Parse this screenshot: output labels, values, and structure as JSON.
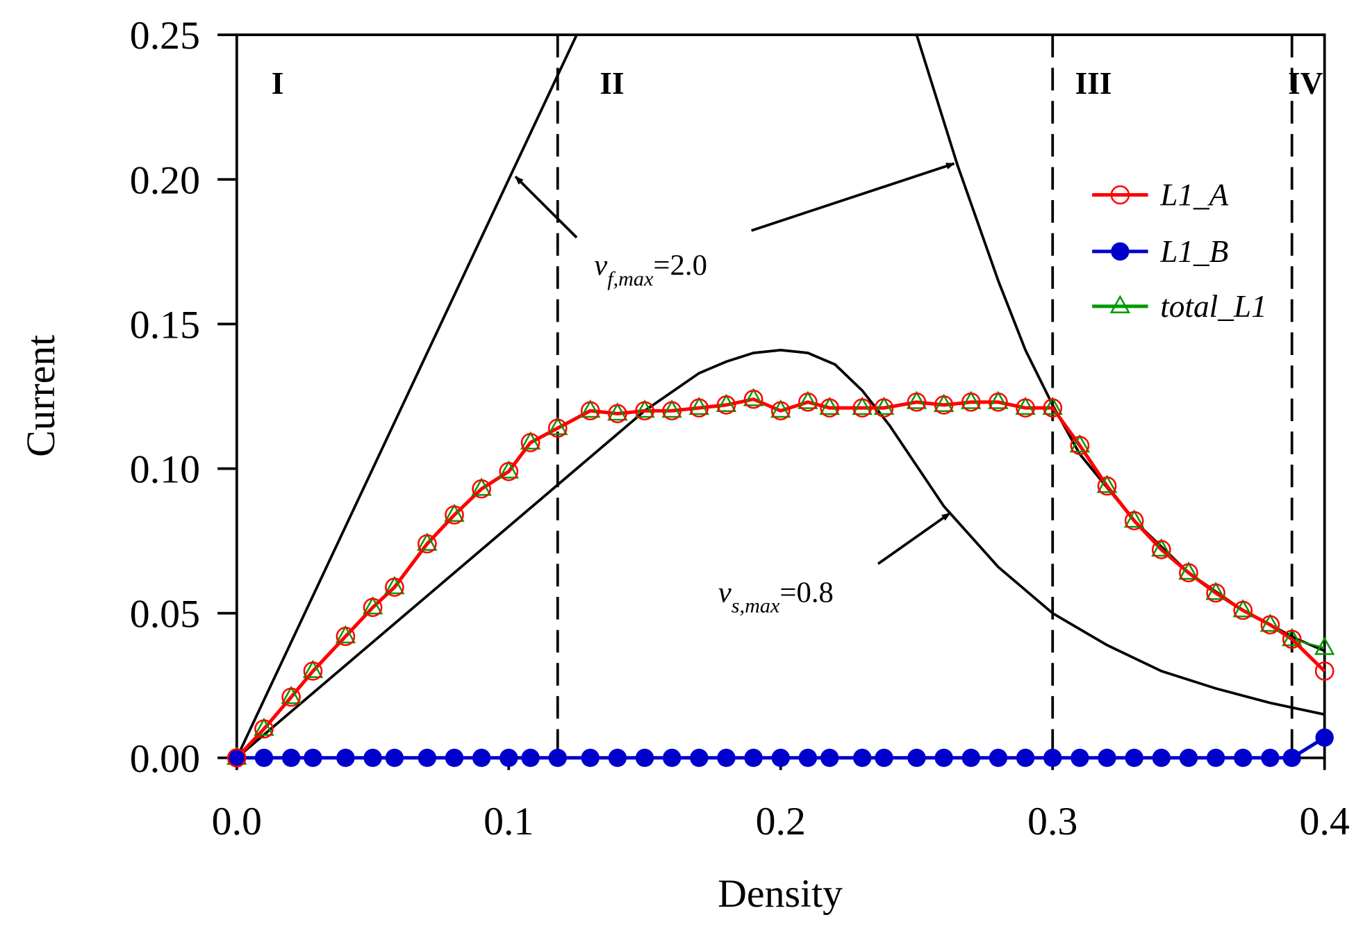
{
  "chart_data": {
    "type": "line",
    "xlabel": "Density",
    "ylabel": "Current",
    "xlim": [
      0,
      0.4
    ],
    "ylim": [
      0,
      0.25
    ],
    "xticks": [
      "0.0",
      "0.1",
      "0.2",
      "0.3",
      "0.4"
    ],
    "yticks": [
      "0.00",
      "0.05",
      "0.10",
      "0.15",
      "0.20",
      "0.25"
    ],
    "legend_position": "right",
    "regions": [
      {
        "label": "I",
        "x": 0.015
      },
      {
        "label": "II",
        "x": 0.138
      },
      {
        "label": "III",
        "x": 0.315
      },
      {
        "label": "IV",
        "x": 0.393
      }
    ],
    "region_boundaries": [
      0.118,
      0.3,
      0.388
    ],
    "x": [
      0,
      0.01,
      0.02,
      0.028,
      0.04,
      0.05,
      0.058,
      0.07,
      0.08,
      0.09,
      0.1,
      0.108,
      0.118,
      0.13,
      0.14,
      0.15,
      0.16,
      0.17,
      0.18,
      0.19,
      0.2,
      0.21,
      0.218,
      0.23,
      0.238,
      0.25,
      0.26,
      0.27,
      0.28,
      0.29,
      0.3,
      0.31,
      0.32,
      0.33,
      0.34,
      0.35,
      0.36,
      0.37,
      0.38,
      0.388,
      0.4
    ],
    "series": [
      {
        "name": "L1_A",
        "color": "#ff0000",
        "marker": "open-circle",
        "values": [
          0,
          0.01,
          0.021,
          0.03,
          0.042,
          0.052,
          0.059,
          0.074,
          0.084,
          0.093,
          0.099,
          0.109,
          0.114,
          0.12,
          0.119,
          0.12,
          0.12,
          0.121,
          0.122,
          0.124,
          0.12,
          0.123,
          0.121,
          0.121,
          0.121,
          0.123,
          0.122,
          0.123,
          0.123,
          0.121,
          0.121,
          0.108,
          0.094,
          0.082,
          0.072,
          0.064,
          0.057,
          0.051,
          0.046,
          0.041,
          0.03
        ]
      },
      {
        "name": "L1_B",
        "color": "#0000cc",
        "marker": "filled-circle",
        "values": [
          0,
          0,
          0,
          0,
          0,
          0,
          0,
          0,
          0,
          0,
          0,
          0,
          0,
          0,
          0,
          0,
          0,
          0,
          0,
          0,
          0,
          0,
          0,
          0,
          0,
          0,
          0,
          0,
          0,
          0,
          0,
          0,
          0,
          0,
          0,
          0,
          0,
          0,
          0,
          0,
          0.007
        ]
      },
      {
        "name": "total_L1",
        "color": "#009900",
        "marker": "open-triangle",
        "values": [
          0,
          0.01,
          0.021,
          0.03,
          0.042,
          0.052,
          0.059,
          0.074,
          0.084,
          0.093,
          0.099,
          0.109,
          0.114,
          0.12,
          0.119,
          0.12,
          0.12,
          0.121,
          0.122,
          0.124,
          0.12,
          0.123,
          0.121,
          0.121,
          0.121,
          0.123,
          0.122,
          0.123,
          0.123,
          0.121,
          0.121,
          0.108,
          0.094,
          0.082,
          0.072,
          0.064,
          0.057,
          0.051,
          0.046,
          0.041,
          0.038
        ]
      }
    ],
    "reference_curves": [
      {
        "label": "v_f,max=2.0",
        "color": "#000000",
        "segments": [
          [
            [
              0,
              0
            ],
            [
              0.125,
              0.25
            ]
          ],
          [
            [
              0.25,
              0.25
            ],
            [
              0.265,
              0.205
            ],
            [
              0.28,
              0.165
            ],
            [
              0.29,
              0.141
            ],
            [
              0.3,
              0.122
            ],
            [
              0.31,
              0.105
            ],
            [
              0.33,
              0.082
            ],
            [
              0.35,
              0.064
            ],
            [
              0.37,
              0.051
            ],
            [
              0.39,
              0.041
            ],
            [
              0.4,
              0.037
            ]
          ]
        ]
      },
      {
        "label": "v_s,max=0.8",
        "color": "#000000",
        "segments": [
          [
            [
              0,
              0
            ],
            [
              0.15,
              0.12
            ],
            [
              0.17,
              0.133
            ],
            [
              0.18,
              0.137
            ],
            [
              0.19,
              0.14
            ],
            [
              0.2,
              0.141
            ],
            [
              0.21,
              0.14
            ],
            [
              0.22,
              0.136
            ],
            [
              0.23,
              0.127
            ],
            [
              0.24,
              0.115
            ],
            [
              0.26,
              0.087
            ],
            [
              0.28,
              0.066
            ],
            [
              0.3,
              0.05
            ],
            [
              0.32,
              0.039
            ],
            [
              0.34,
              0.03
            ],
            [
              0.36,
              0.024
            ],
            [
              0.38,
              0.019
            ],
            [
              0.4,
              0.015
            ]
          ]
        ]
      }
    ],
    "annotations": {
      "vf": {
        "v": "v",
        "sub": "f,max",
        "rest": "=2.0"
      },
      "vs": {
        "v": "v",
        "sub": "s,max",
        "rest": "=0.8"
      }
    }
  }
}
